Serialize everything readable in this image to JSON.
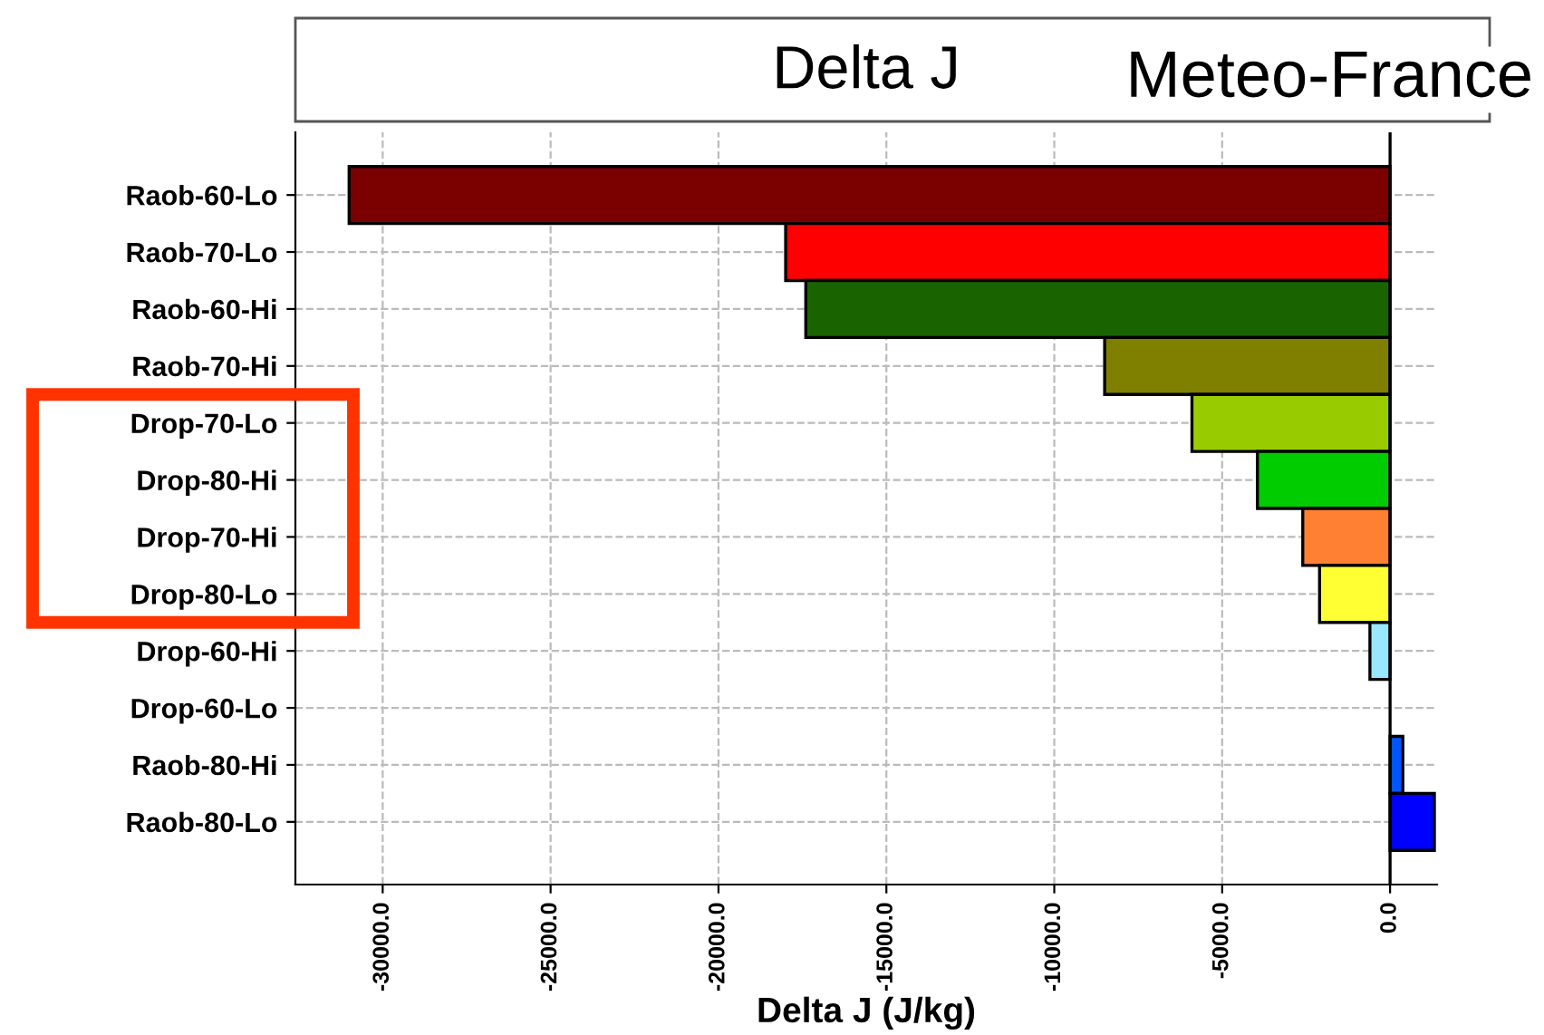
{
  "chart_data": {
    "type": "bar",
    "orientation": "horizontal",
    "title": "Delta J",
    "xlabel": "Delta J (J/kg)",
    "categories": [
      "Raob-60-Lo",
      "Raob-70-Lo",
      "Raob-60-Hi",
      "Raob-70-Hi",
      "Drop-70-Lo",
      "Drop-80-Hi",
      "Drop-70-Hi",
      "Drop-80-Lo",
      "Drop-60-Hi",
      "Drop-60-Lo",
      "Raob-80-Hi",
      "Raob-80-Lo"
    ],
    "values": [
      -31000,
      -18000,
      -17400,
      -8500,
      -5900,
      -3950,
      -2600,
      -2100,
      -600,
      null,
      380,
      1320
    ],
    "colors": [
      "#7b0000",
      "#ff0000",
      "#1a6400",
      "#7f7f00",
      "#99cc00",
      "#00cc00",
      "#ff8033",
      "#ffff33",
      "#99e6ff",
      "#00007f",
      "#0055ff",
      "#0000ff"
    ],
    "xlim": [
      -32600,
      1400
    ],
    "xticks": [
      {
        "value": -30000,
        "label": "-30000.0"
      },
      {
        "value": -25000,
        "label": "-25000.0"
      },
      {
        "value": -20000,
        "label": "-20000.0"
      },
      {
        "value": -15000,
        "label": "-15000.0"
      },
      {
        "value": -10000,
        "label": "-10000.0"
      },
      {
        "value": -5000,
        "label": "-5000.0"
      },
      {
        "value": 0,
        "label": "0.0"
      }
    ],
    "annotations": [
      "Meteo-France"
    ],
    "grid": true
  }
}
